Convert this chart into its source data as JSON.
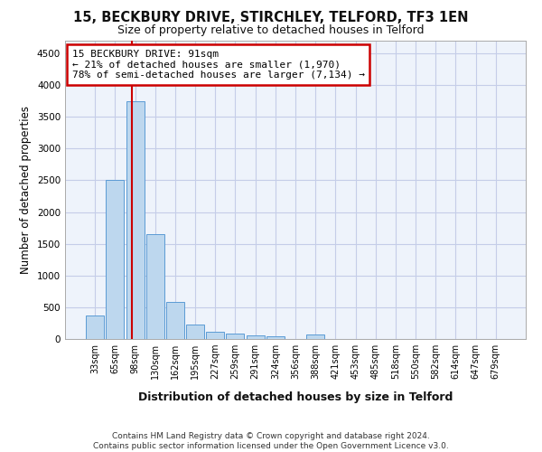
{
  "title1": "15, BECKBURY DRIVE, STIRCHLEY, TELFORD, TF3 1EN",
  "title2": "Size of property relative to detached houses in Telford",
  "xlabel": "Distribution of detached houses by size in Telford",
  "ylabel": "Number of detached properties",
  "bar_categories": [
    "33sqm",
    "65sqm",
    "98sqm",
    "130sqm",
    "162sqm",
    "195sqm",
    "227sqm",
    "259sqm",
    "291sqm",
    "324sqm",
    "356sqm",
    "388sqm",
    "421sqm",
    "453sqm",
    "485sqm",
    "518sqm",
    "550sqm",
    "582sqm",
    "614sqm",
    "647sqm",
    "679sqm"
  ],
  "bar_values": [
    370,
    2500,
    3750,
    1650,
    590,
    225,
    115,
    80,
    55,
    40,
    0,
    70,
    0,
    0,
    0,
    0,
    0,
    0,
    0,
    0,
    0
  ],
  "bar_color": "#BDD7EE",
  "bar_edge_color": "#5B9BD5",
  "annotation_text": "15 BECKBURY DRIVE: 91sqm\n← 21% of detached houses are smaller (1,970)\n78% of semi-detached houses are larger (7,134) →",
  "annotation_box_color": "#ffffff",
  "annotation_border_color": "#cc0000",
  "annotation_text_fontsize": 8,
  "ylim": [
    0,
    4700
  ],
  "yticks": [
    0,
    500,
    1000,
    1500,
    2000,
    2500,
    3000,
    3500,
    4000,
    4500
  ],
  "vline_color": "#cc0000",
  "vline_x": 1.82,
  "title1_fontsize": 10.5,
  "title2_fontsize": 9,
  "xlabel_fontsize": 9,
  "ylabel_fontsize": 8.5,
  "footer1": "Contains HM Land Registry data © Crown copyright and database right 2024.",
  "footer2": "Contains public sector information licensed under the Open Government Licence v3.0.",
  "background_color": "#EEF3FB",
  "grid_color": "#C5CDE8",
  "footer_fontsize": 6.5,
  "tick_fontsize": 7
}
